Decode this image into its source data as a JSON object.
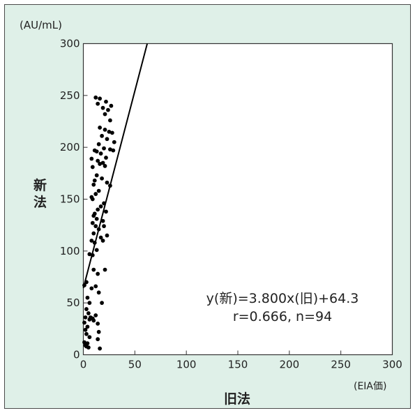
{
  "chart_data": {
    "type": "scatter",
    "unit_label": "(AU/mL)",
    "ylabel": "新法",
    "xlabel": "旧法",
    "xunit_label": "(EIA価)",
    "xlim": [
      0,
      300
    ],
    "ylim": [
      0,
      300
    ],
    "xticks": [
      0,
      50,
      100,
      150,
      200,
      250,
      300
    ],
    "yticks": [
      0,
      50,
      100,
      150,
      200,
      250,
      300
    ],
    "grid": false,
    "colors": {
      "background": "#dff0e8",
      "plot": "#ffffff",
      "points": "#000000",
      "line": "#000000"
    },
    "regression": {
      "slope": 3.8,
      "intercept": 64.3
    },
    "annotation": {
      "equation": "y(新)=3.800x(旧)+64.3",
      "stats": "r=0.666, n=94"
    },
    "points": [
      [
        12,
        248
      ],
      [
        16,
        247
      ],
      [
        22,
        244
      ],
      [
        14,
        242
      ],
      [
        27,
        240
      ],
      [
        19,
        238
      ],
      [
        24,
        236
      ],
      [
        21,
        232
      ],
      [
        26,
        226
      ],
      [
        16,
        219
      ],
      [
        21,
        217
      ],
      [
        25,
        215
      ],
      [
        28,
        214
      ],
      [
        18,
        211
      ],
      [
        23,
        208
      ],
      [
        30,
        205
      ],
      [
        15,
        203
      ],
      [
        20,
        199
      ],
      [
        26,
        198
      ],
      [
        11,
        197
      ],
      [
        29,
        197
      ],
      [
        13,
        196
      ],
      [
        17,
        194
      ],
      [
        8,
        189
      ],
      [
        22,
        190
      ],
      [
        14,
        187
      ],
      [
        19,
        185
      ],
      [
        16,
        184
      ],
      [
        9,
        181
      ],
      [
        21,
        182
      ],
      [
        13,
        173
      ],
      [
        18,
        170
      ],
      [
        11,
        168
      ],
      [
        23,
        166
      ],
      [
        10,
        164
      ],
      [
        26,
        163
      ],
      [
        15,
        158
      ],
      [
        12,
        155
      ],
      [
        8,
        152
      ],
      [
        9,
        150
      ],
      [
        20,
        146
      ],
      [
        17,
        143
      ],
      [
        14,
        140
      ],
      [
        22,
        138
      ],
      [
        11,
        136
      ],
      [
        10,
        134
      ],
      [
        13,
        131
      ],
      [
        19,
        129
      ],
      [
        9,
        127
      ],
      [
        12,
        124
      ],
      [
        20,
        124
      ],
      [
        15,
        121
      ],
      [
        10,
        117
      ],
      [
        23,
        115
      ],
      [
        17,
        113
      ],
      [
        8,
        110
      ],
      [
        19,
        110
      ],
      [
        11,
        108
      ],
      [
        13,
        101
      ],
      [
        6,
        97
      ],
      [
        9,
        96
      ],
      [
        10,
        82
      ],
      [
        21,
        82
      ],
      [
        14,
        78
      ],
      [
        3,
        70
      ],
      [
        1,
        67
      ],
      [
        12,
        66
      ],
      [
        8,
        64
      ],
      [
        15,
        60
      ],
      [
        4,
        55
      ],
      [
        6,
        50
      ],
      [
        18,
        50
      ],
      [
        3,
        44
      ],
      [
        5,
        40
      ],
      [
        12,
        38
      ],
      [
        2,
        36
      ],
      [
        7,
        36
      ],
      [
        9,
        35
      ],
      [
        6,
        34
      ],
      [
        10,
        33
      ],
      [
        1,
        31
      ],
      [
        14,
        30
      ],
      [
        4,
        27
      ],
      [
        2,
        24
      ],
      [
        15,
        22
      ],
      [
        3,
        20
      ],
      [
        6,
        17
      ],
      [
        14,
        15
      ],
      [
        1,
        12
      ],
      [
        4,
        11
      ],
      [
        2,
        9
      ],
      [
        3,
        8
      ],
      [
        5,
        7
      ],
      [
        16,
        6
      ]
    ]
  }
}
